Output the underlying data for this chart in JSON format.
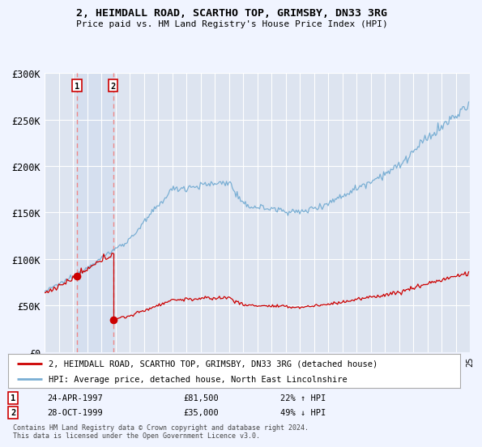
{
  "title": "2, HEIMDALL ROAD, SCARTHO TOP, GRIMSBY, DN33 3RG",
  "subtitle": "Price paid vs. HM Land Registry's House Price Index (HPI)",
  "background_color": "#f0f4ff",
  "plot_bg_color": "#dde4f0",
  "grid_color": "#ffffff",
  "transaction1": {
    "date": "24-APR-1997",
    "price": 81500,
    "hpi_pct": "22% ↑ HPI",
    "label": "1"
  },
  "transaction2": {
    "date": "28-OCT-1999",
    "price": 35000,
    "hpi_pct": "49% ↓ HPI",
    "label": "2"
  },
  "legend_property": "2, HEIMDALL ROAD, SCARTHO TOP, GRIMSBY, DN33 3RG (detached house)",
  "legend_hpi": "HPI: Average price, detached house, North East Lincolnshire",
  "footer": "Contains HM Land Registry data © Crown copyright and database right 2024.\nThis data is licensed under the Open Government Licence v3.0.",
  "property_color": "#cc0000",
  "hpi_color": "#7aafd4",
  "vline_color": "#ee8888",
  "marker_color": "#cc0000",
  "ylim": [
    0,
    300000
  ],
  "yticks": [
    0,
    50000,
    100000,
    150000,
    200000,
    250000,
    300000
  ],
  "ytick_labels": [
    "£0",
    "£50K",
    "£100K",
    "£150K",
    "£200K",
    "£250K",
    "£300K"
  ],
  "x_start_year": 1995,
  "x_end_year": 2025,
  "t1_year": 1997.29,
  "t2_year": 1999.83,
  "t1_price": 81500,
  "t2_price": 35000
}
